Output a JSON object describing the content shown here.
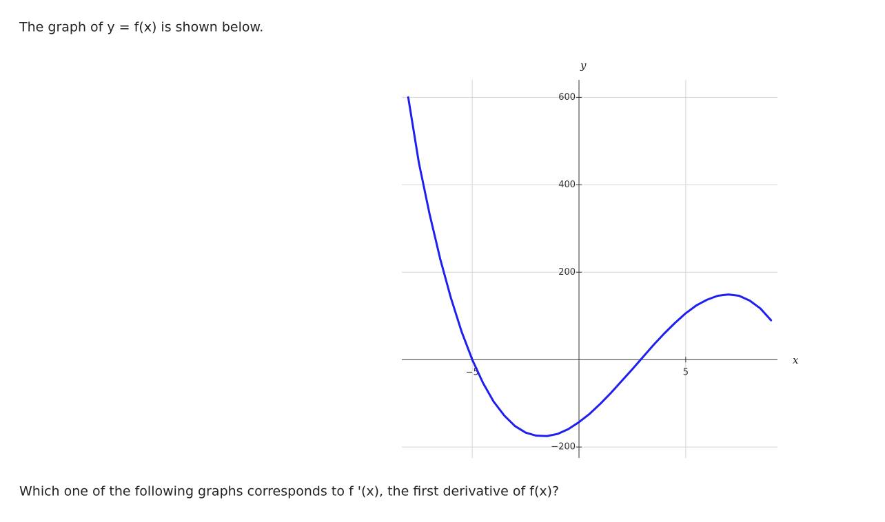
{
  "prompt": "The graph of y = f(x) is shown below.",
  "question": "Which one of the following graphs corresponds to f '(x), the first derivative of f(x)?",
  "chart_data": {
    "type": "line",
    "x_label": "x",
    "y_label": "y",
    "x": [
      -8,
      -7.5,
      -7,
      -6.5,
      -6,
      -5.5,
      -5,
      -4.5,
      -4,
      -3.5,
      -3,
      -2.5,
      -2,
      -1.5,
      -1,
      -0.5,
      0,
      0.5,
      1,
      1.5,
      2,
      2.5,
      3,
      3.5,
      4,
      4.5,
      5,
      5.5,
      6,
      6.5,
      7,
      7.5,
      8,
      8.5,
      9
    ],
    "series": [
      {
        "name": "f(x)",
        "color": "#1f1ff0",
        "values": [
          600,
          450,
          333,
          230,
          141,
          64,
          0,
          -53,
          -96,
          -128,
          -152,
          -167,
          -174,
          -175,
          -170,
          -159,
          -143,
          -124,
          -101,
          -76,
          -49,
          -22,
          6,
          34,
          60,
          84,
          106,
          124,
          137,
          146,
          149,
          146,
          135,
          117,
          90
        ]
      }
    ],
    "xlim": [
      -8.3,
      9.3
    ],
    "ylim": [
      -225,
      640
    ],
    "xticks": [
      {
        "value": -5,
        "label": "−5"
      },
      5
    ],
    "yticks": [
      {
        "value": -200,
        "label": "−200"
      },
      200,
      400,
      600
    ],
    "grid": true
  }
}
